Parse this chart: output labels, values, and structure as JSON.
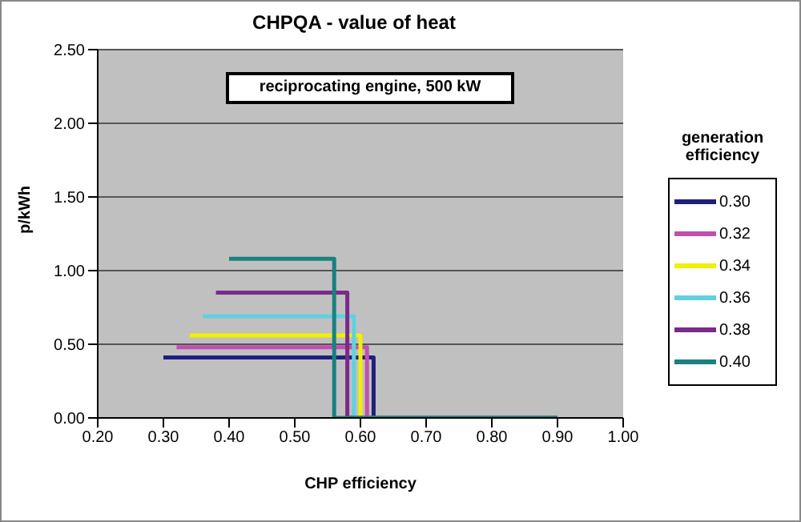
{
  "chart_data": {
    "type": "line",
    "title": "CHPQA - value of heat",
    "xlabel": "CHP efficiency",
    "ylabel": "p/kWh",
    "legend_title": "generation efficiency",
    "annotations": [
      "reciprocating engine, 500 kW"
    ],
    "xlim": [
      0.2,
      1.0
    ],
    "xticks": [
      {
        "value": 0.2,
        "label": "0.20"
      },
      {
        "value": 0.3,
        "label": "0.30"
      },
      {
        "value": 0.4,
        "label": "0.40"
      },
      {
        "value": 0.5,
        "label": "0.50"
      },
      {
        "value": 0.6,
        "label": "0.60"
      },
      {
        "value": 0.7,
        "label": "0.70"
      },
      {
        "value": 0.8,
        "label": "0.80"
      },
      {
        "value": 0.9,
        "label": "0.90"
      },
      {
        "value": 1.0,
        "label": "1.00"
      }
    ],
    "ylim": [
      0,
      2.5
    ],
    "yticks": [
      {
        "value": 0,
        "label": "0.00"
      },
      {
        "value": 0.5,
        "label": "0.50"
      },
      {
        "value": 1.0,
        "label": "1.00"
      },
      {
        "value": 1.5,
        "label": "1.50"
      },
      {
        "value": 2.0,
        "label": "2.00"
      },
      {
        "value": 2.5,
        "label": "2.50"
      }
    ],
    "grid": "y",
    "legend": "right",
    "marker": "none",
    "line_style": "solid",
    "series": [
      {
        "name": "0.30",
        "color": "#1f1f7a",
        "x": [
          0.3,
          0.62,
          0.62,
          0.9
        ],
        "values": [
          0.41,
          0.41,
          0,
          0
        ]
      },
      {
        "name": "0.32",
        "color": "#c050b0",
        "x": [
          0.32,
          0.61,
          0.61,
          0.9
        ],
        "values": [
          0.48,
          0.48,
          0,
          0
        ]
      },
      {
        "name": "0.34",
        "color": "#f0f000",
        "x": [
          0.34,
          0.6,
          0.6,
          0.9
        ],
        "values": [
          0.56,
          0.56,
          0,
          0
        ]
      },
      {
        "name": "0.36",
        "color": "#60d0e0",
        "x": [
          0.36,
          0.59,
          0.59,
          0.9
        ],
        "values": [
          0.69,
          0.69,
          0,
          0
        ]
      },
      {
        "name": "0.38",
        "color": "#7a2a8a",
        "x": [
          0.38,
          0.58,
          0.58,
          0.9
        ],
        "values": [
          0.85,
          0.85,
          0,
          0
        ]
      },
      {
        "name": "0.40",
        "color": "#1a8080",
        "x": [
          0.4,
          0.56,
          0.56,
          0.9
        ],
        "values": [
          1.08,
          1.08,
          0,
          0
        ]
      }
    ]
  }
}
